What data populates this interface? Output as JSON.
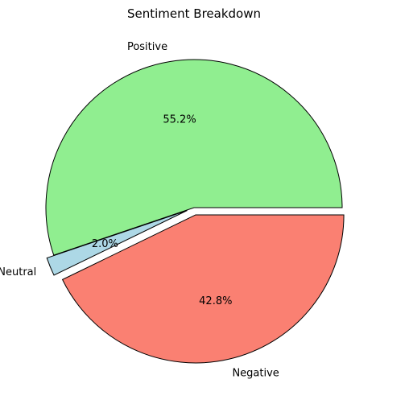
{
  "chart_data": {
    "type": "pie",
    "title": "Sentiment Breakdown",
    "slices": [
      {
        "label": "Positive",
        "value": 55.2,
        "pct_label": "55.2%",
        "color": "#90EE90",
        "exploded": false
      },
      {
        "label": "Neutral",
        "value": 2.0,
        "pct_label": "2.0%",
        "color": "#ADD8E6",
        "exploded": true
      },
      {
        "label": "Negative",
        "value": 42.8,
        "pct_label": "42.8%",
        "color": "#FA8072",
        "exploded": true
      }
    ],
    "edge_color": "#000000"
  }
}
